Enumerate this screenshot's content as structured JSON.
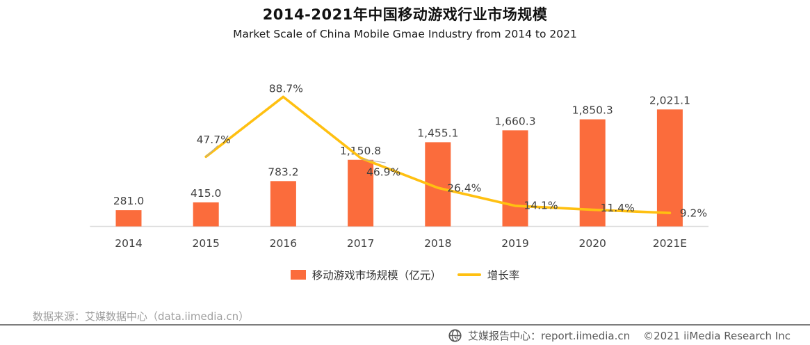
{
  "header": {
    "title": "2014-2021年中国移动游戏行业市场规模",
    "subtitle": "Market Scale of China Mobile Gmae Industry from 2014 to 2021"
  },
  "chart_data": {
    "type": "bar+line",
    "categories": [
      "2014",
      "2015",
      "2016",
      "2017",
      "2018",
      "2019",
      "2020",
      "2021E"
    ],
    "series": [
      {
        "name": "移动游戏市场规模（亿元）",
        "type": "bar",
        "values": [
          281.0,
          415.0,
          783.2,
          1150.8,
          1455.1,
          1660.3,
          1850.3,
          2021.1
        ],
        "labels": [
          "281.0",
          "415.0",
          "783.2",
          "1,150.8",
          "1,455.1",
          "1,660.3",
          "1,850.3",
          "2,021.1"
        ]
      },
      {
        "name": "增长率",
        "type": "line",
        "values": [
          null,
          47.7,
          88.7,
          46.9,
          26.4,
          14.1,
          11.4,
          9.2
        ],
        "labels": [
          null,
          "47.7%",
          "88.7%",
          "46.9%",
          "26.4%",
          "14.1%",
          "11.4%",
          "9.2%"
        ]
      }
    ],
    "bar_axis_range": [
      0,
      2500
    ],
    "line_axis_range": [
      0,
      100
    ],
    "grid": "off",
    "legend_position": "bottom",
    "colors": {
      "bar": "#FB6C3C",
      "line": "#FFC011",
      "axis": "#DCDCDC",
      "label": "#404040",
      "leader": "#ABABAB"
    }
  },
  "footer": {
    "source": "数据来源：艾媒数据中心（data.iimedia.cn）",
    "report_center": "艾媒报告中心：report.iimedia.cn",
    "copyright": "©2021  iiMedia Research Inc"
  }
}
